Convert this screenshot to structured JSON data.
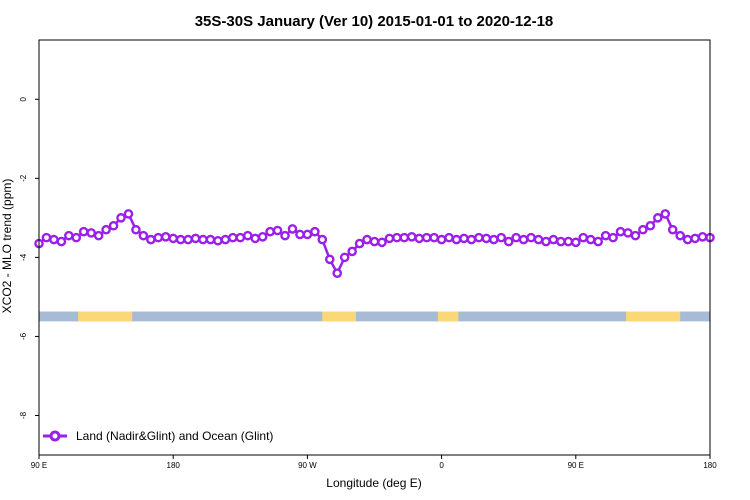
{
  "chart_data": {
    "type": "line",
    "title": "35S-30S January (Ver 10)   2015-01-01 to 2020-12-18",
    "xlabel": "Longitude (deg E)",
    "ylabel": "XCO2 - MLO trend (ppm)",
    "xlim": [
      90,
      450
    ],
    "ylim": [
      -9,
      1.5
    ],
    "x_ticks": [
      90,
      162,
      234,
      306,
      378,
      450
    ],
    "x_tick_labels": [
      "90 E",
      "180",
      "90 W",
      "0",
      "90 E",
      "180"
    ],
    "y_ticks": [
      0,
      -2,
      -4,
      -6,
      -8
    ],
    "y_tick_labels": [
      "0",
      "-2",
      "-4",
      "-6",
      "-8"
    ],
    "grid": false,
    "legend_position": "bottom-left",
    "series": [
      {
        "name": "Land (Nadir&Glint) and Ocean (Glint)",
        "color": "#9b1fe8",
        "x": [
          90,
          94,
          98,
          102,
          106,
          110,
          114,
          118,
          122,
          126,
          130,
          134,
          138,
          142,
          146,
          150,
          154,
          158,
          162,
          166,
          170,
          174,
          178,
          182,
          186,
          190,
          194,
          198,
          202,
          206,
          210,
          214,
          218,
          222,
          226,
          230,
          234,
          238,
          242,
          246,
          250,
          254,
          258,
          262,
          266,
          270,
          274,
          278,
          282,
          286,
          290,
          294,
          298,
          302,
          306,
          310,
          314,
          318,
          322,
          326,
          330,
          334,
          338,
          342,
          346,
          350,
          354,
          358,
          362,
          366,
          370,
          374,
          378,
          382,
          386,
          390,
          394,
          398,
          402,
          406,
          410,
          414,
          418,
          422,
          426,
          430,
          434,
          438,
          442,
          446,
          450
        ],
        "values": [
          -3.65,
          -3.5,
          -3.55,
          -3.6,
          -3.45,
          -3.5,
          -3.35,
          -3.38,
          -3.45,
          -3.3,
          -3.2,
          -3.0,
          -2.9,
          -3.3,
          -3.45,
          -3.55,
          -3.5,
          -3.48,
          -3.52,
          -3.55,
          -3.55,
          -3.52,
          -3.55,
          -3.55,
          -3.58,
          -3.55,
          -3.5,
          -3.5,
          -3.45,
          -3.52,
          -3.48,
          -3.35,
          -3.32,
          -3.45,
          -3.28,
          -3.42,
          -3.42,
          -3.35,
          -3.55,
          -4.05,
          -4.4,
          -4.0,
          -3.85,
          -3.65,
          -3.55,
          -3.6,
          -3.62,
          -3.52,
          -3.5,
          -3.5,
          -3.48,
          -3.52,
          -3.5,
          -3.5,
          -3.55,
          -3.5,
          -3.55,
          -3.52,
          -3.55,
          -3.5,
          -3.52,
          -3.55,
          -3.5,
          -3.6,
          -3.5,
          -3.55,
          -3.5,
          -3.55,
          -3.6,
          -3.55,
          -3.6,
          -3.6,
          -3.62,
          -3.5,
          -3.55,
          -3.6,
          -3.45,
          -3.5,
          -3.35,
          -3.38,
          -3.45,
          -3.3,
          -3.2,
          -3.0,
          -2.9,
          -3.3,
          -3.45,
          -3.55,
          -3.52,
          -3.48,
          -3.5
        ]
      }
    ],
    "map_strip": {
      "y_range": [
        -5.37,
        -5.62
      ],
      "ocean_color": "#a7bbd6",
      "land_color": "#fbd877",
      "land_segments": [
        [
          111,
          140
        ],
        [
          242,
          260
        ],
        [
          304,
          315
        ],
        [
          405,
          434
        ]
      ]
    },
    "legend": {
      "label": "Land (Nadir&Glint) and Ocean (Glint)"
    }
  }
}
